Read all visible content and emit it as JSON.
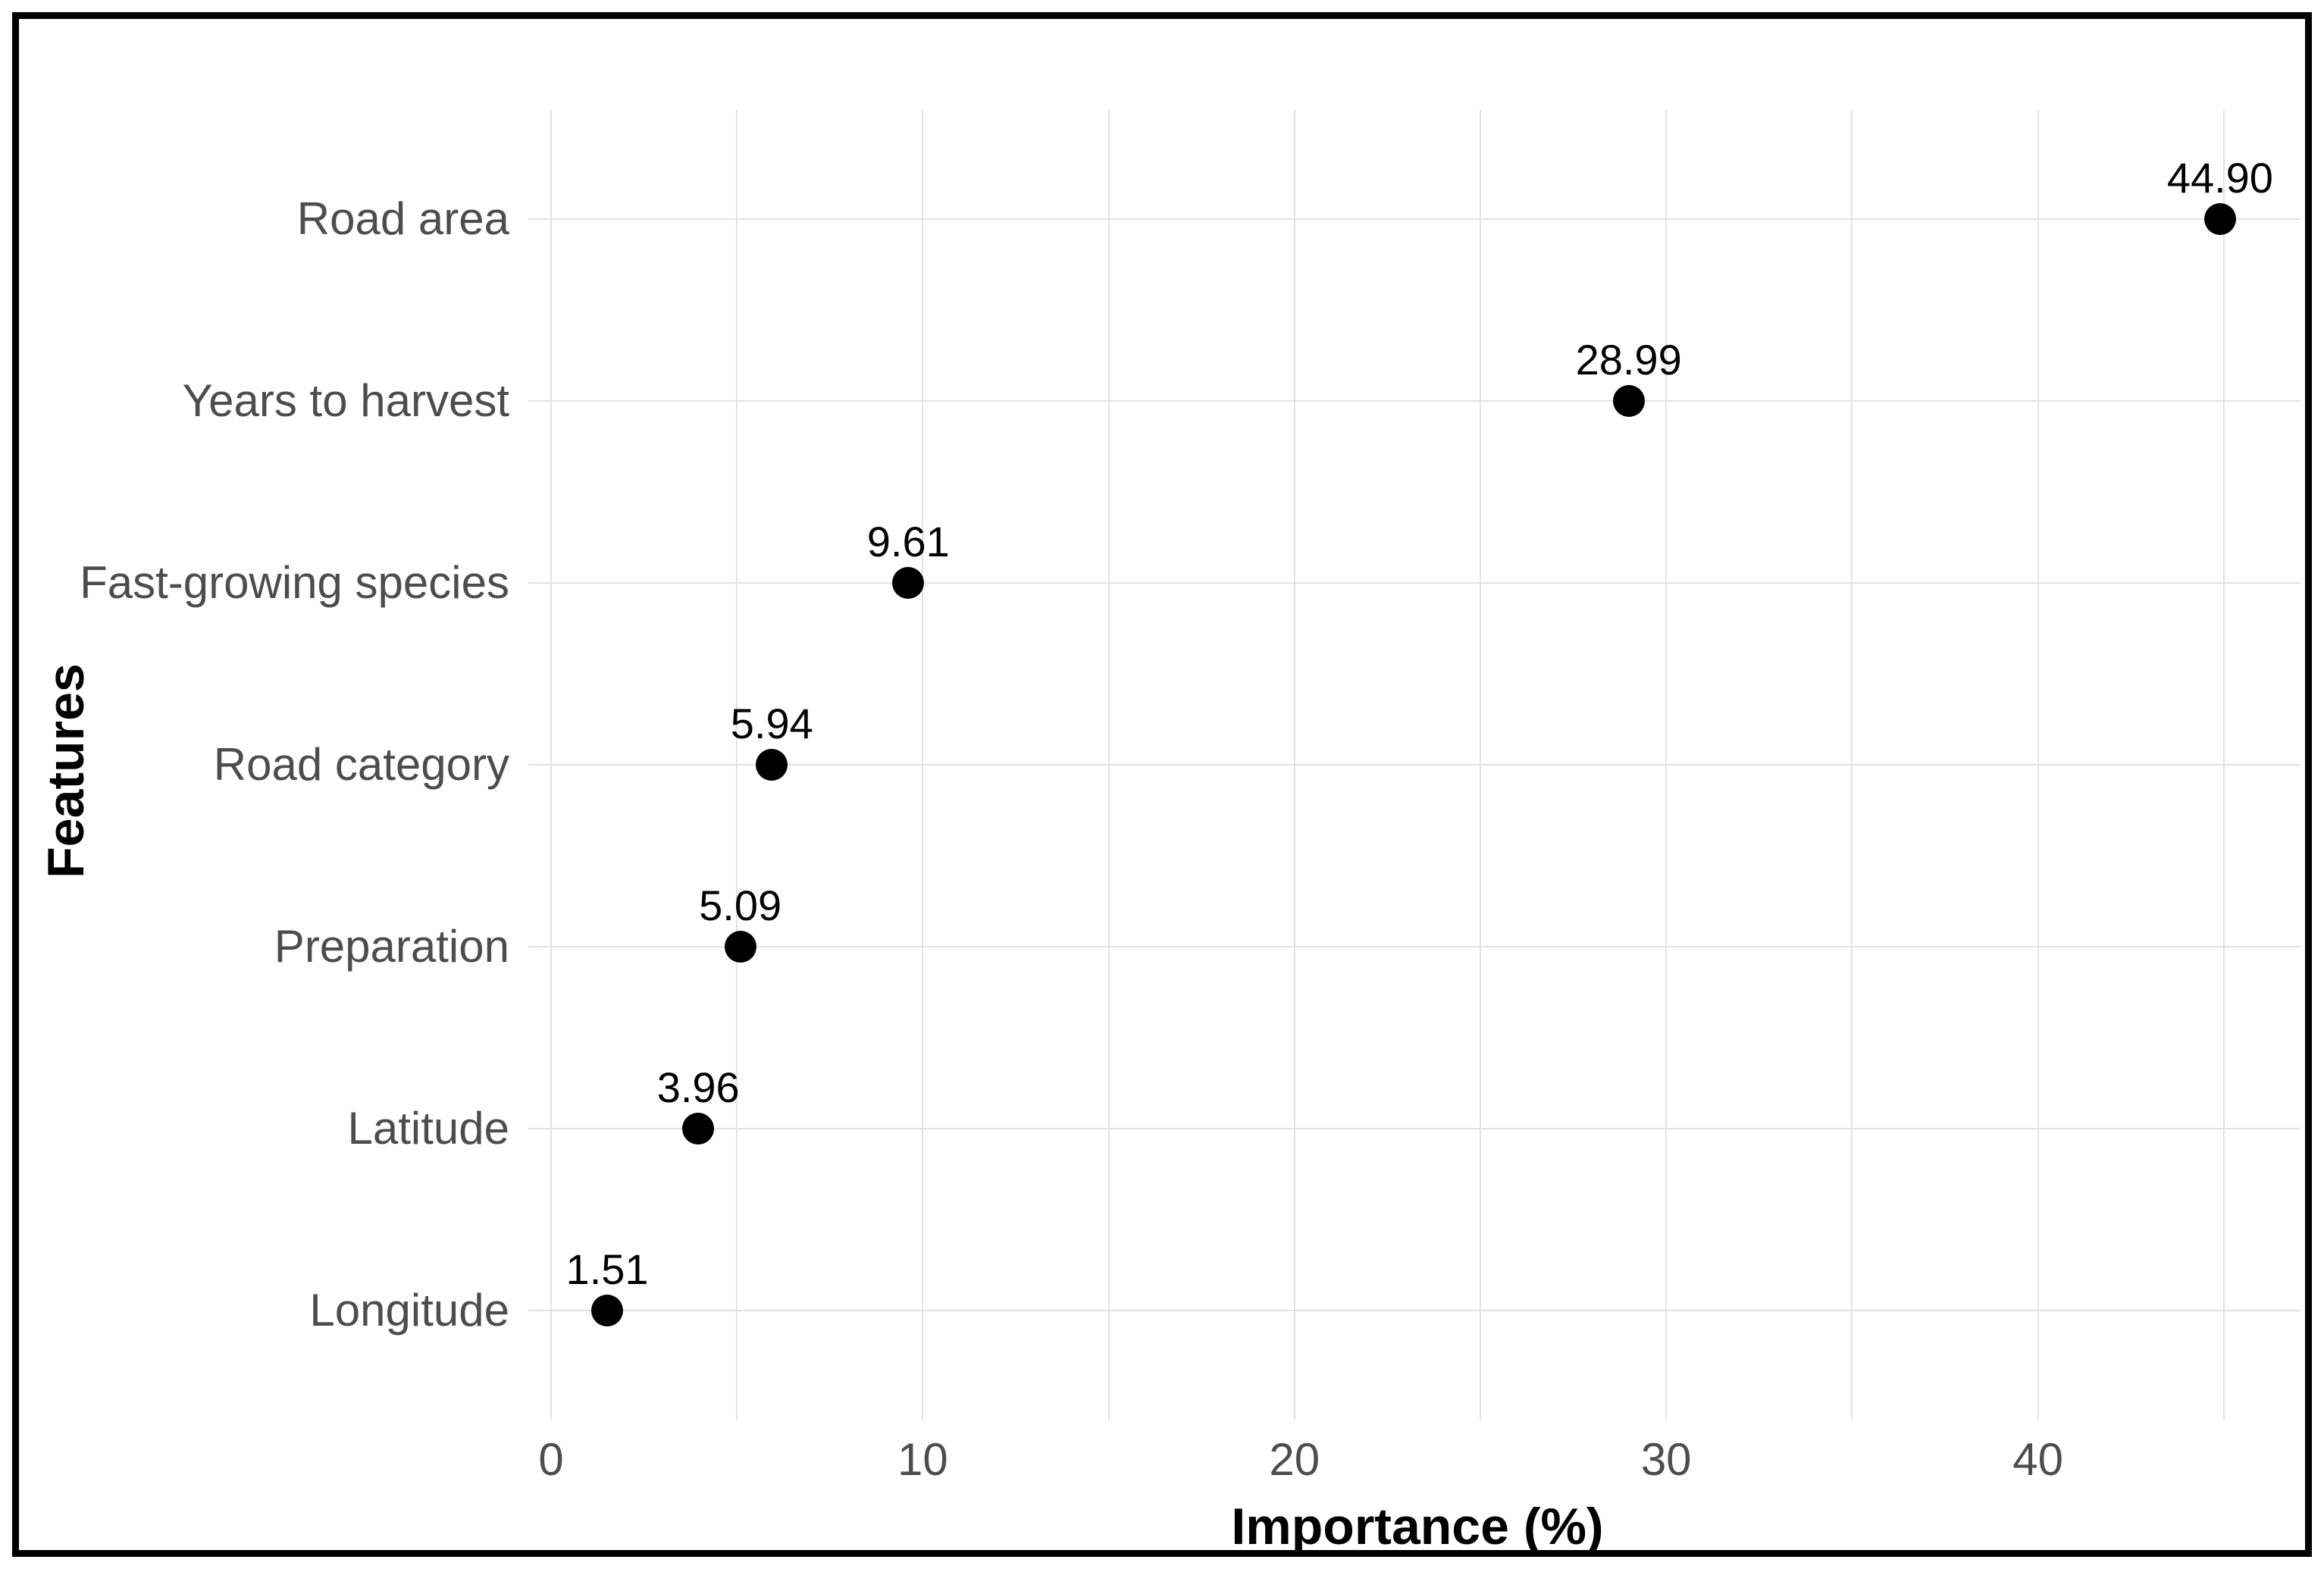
{
  "chart_data": {
    "type": "scatter",
    "variant": "horizontal-dot-plot",
    "xlabel": "Importance (%)",
    "ylabel": "Features",
    "categories": [
      "Road area",
      "Years to harvest",
      "Fast-growing species",
      "Road category",
      "Preparation",
      "Latitude",
      "Longitude"
    ],
    "values": [
      44.9,
      28.99,
      9.61,
      5.94,
      5.09,
      3.96,
      1.51
    ],
    "point_labels": [
      "44.90",
      "28.99",
      "9.61",
      "5.94",
      "5.09",
      "3.96",
      "1.51"
    ],
    "x_major_ticks": [
      0,
      10,
      20,
      30,
      40
    ],
    "x_minor_ticks": [
      5,
      15,
      25,
      35,
      45
    ],
    "xlim": [
      -0.6,
      47.1
    ],
    "grid": true,
    "legend": false,
    "colors": {
      "point": "#000000",
      "label_text": "#000000",
      "axis_text": "#4d4d4d",
      "axis_title": "#000000",
      "gridline": "#e2e2e2",
      "frame": "#000000",
      "background": "#ffffff"
    }
  }
}
